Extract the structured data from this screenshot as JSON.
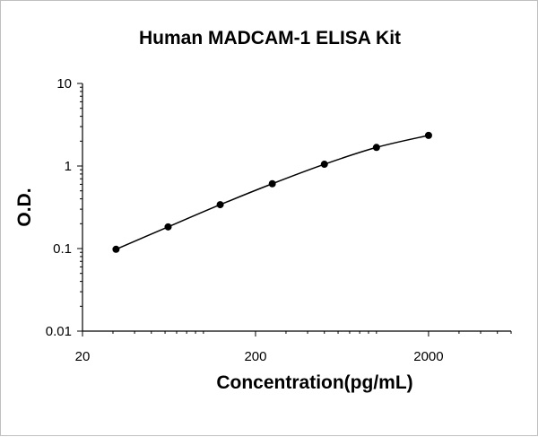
{
  "chart_data": {
    "type": "line",
    "title": "Human MADCAM-1 ELISA Kit",
    "xlabel": "Concentration(pg/mL)",
    "ylabel": "O.D.",
    "x_scale": "log",
    "y_scale": "log",
    "xlim": [
      20,
      6000
    ],
    "ylim": [
      0.01,
      10
    ],
    "x_ticks": [
      "20",
      "200",
      "2000"
    ],
    "y_ticks": [
      "10",
      "1",
      "0.1",
      "0.01"
    ],
    "grid": false,
    "legend": "none",
    "series": [
      {
        "x": [
          31.25,
          62.5,
          125,
          250,
          500,
          1000,
          2000
        ],
        "y": [
          0.098,
          0.183,
          0.34,
          0.61,
          1.05,
          1.68,
          2.35
        ]
      }
    ],
    "colors": {
      "line": "#000000",
      "marker": "#000000",
      "axis": "#000000"
    }
  }
}
